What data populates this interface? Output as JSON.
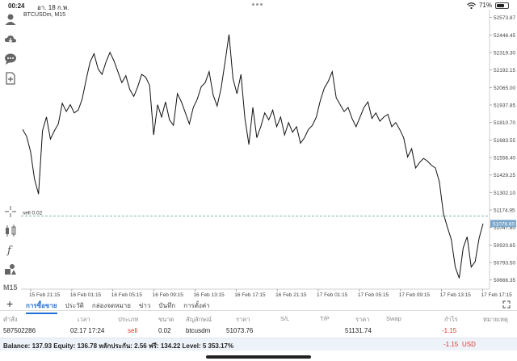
{
  "status": {
    "time": "00:24",
    "date": "อา. 18 ก.พ.",
    "battery": "71%",
    "battery_level": 0.71
  },
  "toolbar": {
    "icons": [
      "person-add-icon",
      "cloud-icon",
      "chat-icon",
      "document-icon",
      "crosshair-icon",
      "indicators-icon",
      "function-icon",
      "objects-icon"
    ],
    "timeframe": "M15"
  },
  "chart": {
    "title": "BTCUSDm, M15",
    "order_label": "sell 0.02",
    "current_price": "51076.60",
    "order_price": 51131.74,
    "price_labels": [
      "52573.87",
      "52446.45",
      "52319.30",
      "52192.15",
      "52065.00",
      "51937.85",
      "51810.70",
      "51683.55",
      "51556.40",
      "51429.25",
      "51302.10",
      "51174.95",
      "51047.80",
      "50920.65",
      "50793.50",
      "50666.35"
    ],
    "time_labels": [
      "15 Feb 21:15",
      "16 Feb 01:15",
      "16 Feb 05:15",
      "16 Feb 09:15",
      "16 Feb 13:15",
      "16 Feb 17:15",
      "16 Feb 21:15",
      "17 Feb 01:15",
      "17 Feb 05:15",
      "17 Feb 09:15",
      "17 Feb 13:15",
      "17 Feb 17:15"
    ]
  },
  "chart_data": {
    "type": "line",
    "symbol": "BTCUSDm",
    "timeframe": "M15",
    "y_range": [
      50600,
      52630
    ],
    "x_labels": [
      "15 Feb 21:15",
      "16 Feb 01:15",
      "16 Feb 05:15",
      "16 Feb 09:15",
      "16 Feb 13:15",
      "16 Feb 17:15",
      "16 Feb 21:15",
      "17 Feb 01:15",
      "17 Feb 05:15",
      "17 Feb 09:15",
      "17 Feb 13:15",
      "17 Feb 17:15"
    ],
    "values": [
      51760,
      51710,
      51600,
      51400,
      51290,
      51750,
      51850,
      51690,
      51750,
      51800,
      51950,
      51890,
      51940,
      51880,
      51900,
      51980,
      52120,
      52250,
      52310,
      52200,
      52160,
      52250,
      52320,
      52260,
      52180,
      52100,
      52150,
      52050,
      52000,
      52070,
      52160,
      52140,
      52080,
      51720,
      51940,
      51850,
      51960,
      51830,
      51790,
      52020,
      51960,
      51880,
      51800,
      51920,
      51980,
      52070,
      52100,
      52180,
      52010,
      51930,
      52060,
      52250,
      52450,
      52130,
      52020,
      52160,
      51840,
      51650,
      51920,
      51700,
      51780,
      51880,
      51830,
      51900,
      51780,
      51850,
      51720,
      51810,
      51740,
      51780,
      51660,
      51700,
      51760,
      51790,
      51850,
      51970,
      52060,
      52110,
      52180,
      51990,
      51940,
      51890,
      51920,
      51840,
      51780,
      51850,
      51920,
      51960,
      51840,
      51880,
      51820,
      51850,
      51870,
      51780,
      51810,
      51760,
      51700,
      51560,
      51620,
      51480,
      51520,
      51550,
      51530,
      51500,
      51480,
      51380,
      51150,
      51050,
      50960,
      50760,
      50680,
      50900,
      50980,
      50760,
      50800,
      50970,
      51076
    ]
  },
  "tabs": [
    {
      "label": "การซื้อขาย",
      "active": true
    },
    {
      "label": "ประวัติ",
      "active": false
    },
    {
      "label": "กล่องจดหมาย",
      "active": false
    },
    {
      "label": "ข่าว",
      "active": false
    },
    {
      "label": "บันทึก",
      "active": false
    },
    {
      "label": "การตั้งค่า",
      "active": false
    }
  ],
  "columns": [
    "คำสั่ง",
    "เวลา",
    "ประเภท",
    "ขนาด",
    "สัญลักษณ์",
    "ราคา",
    "S/L",
    "T/P",
    "ราคา",
    "Swap",
    "กำไร",
    "หมายเหตุ"
  ],
  "order": {
    "ticket": "587502286",
    "time": "02.17 17:24",
    "type": "sell",
    "volume": "0.02",
    "symbol": "btcusdm",
    "price": "51073.76",
    "sl": "",
    "tp": "",
    "current": "51131.74",
    "swap": "",
    "profit": "-1.15",
    "comment": ""
  },
  "summary": {
    "text": "Balance: 137.93 Equity: 136.78 หลักประกัน: 2.56 ฟรี: 134.22 Level: 5 353.17%",
    "profit": "-1.15",
    "currency": "USD"
  },
  "colors": {
    "accent": "#1f6fd6",
    "loss": "#e0342e",
    "order_line": "#5f9ea0",
    "price_tag": "#7aa6c9"
  }
}
